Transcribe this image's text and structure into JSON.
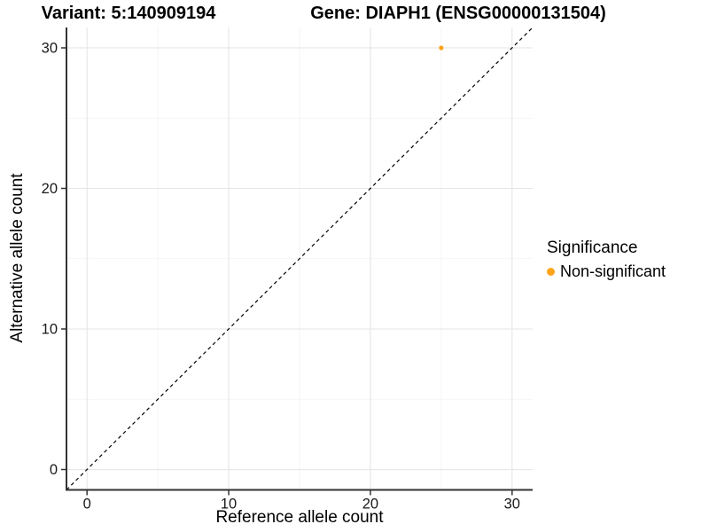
{
  "titles": {
    "left": "Variant: 5:140909194",
    "right": "Gene: DIAPH1 (ENSG00000131504)"
  },
  "chart_data": {
    "type": "scatter",
    "xlabel": "Reference allele count",
    "ylabel": "Alternative allele count",
    "xlim": [
      -1.45,
      31.45
    ],
    "ylim": [
      -1.45,
      31.45
    ],
    "x_ticks": [
      0,
      10,
      20,
      30
    ],
    "y_ticks": [
      0,
      10,
      20,
      30
    ],
    "x_minor_ticks": [
      5,
      15,
      25
    ],
    "y_minor_ticks": [
      5,
      15,
      25
    ],
    "grid": true,
    "points": [
      {
        "x": 25,
        "y": 30,
        "series": "Non-significant"
      }
    ],
    "reference_line": {
      "kind": "identity",
      "style": "dashed"
    },
    "legend": {
      "title": "Significance",
      "position": "right",
      "items": [
        {
          "label": "Non-significant",
          "color": "#FFA41B"
        }
      ]
    }
  },
  "colors": {
    "point": "#FFA41B",
    "grid_major": "#E6E6E6",
    "grid_minor": "#F2F2F2",
    "axis_line": "#333333",
    "tick_mark": "#333333",
    "tick_label": "#1A1A1A",
    "reference_line": "#000000",
    "background": "#FFFFFF"
  }
}
